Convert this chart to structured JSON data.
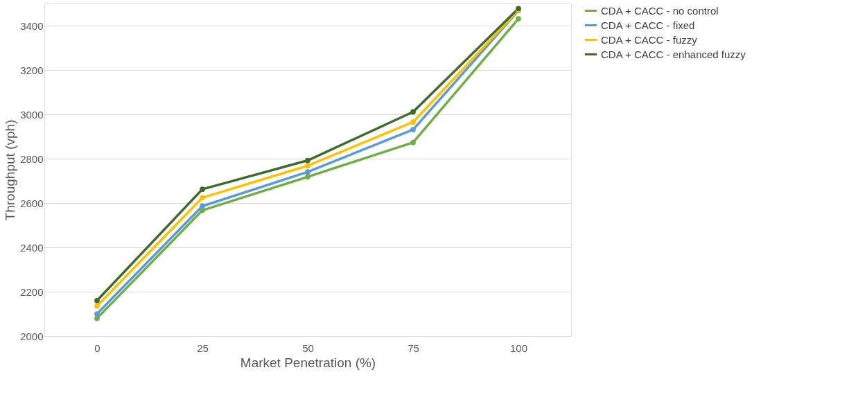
{
  "chart_data": {
    "type": "line",
    "xlabel": "Market Penetration (%)",
    "ylabel": "Throughput (vph)",
    "categories": [
      "0",
      "25",
      "50",
      "75",
      "100"
    ],
    "ylim": [
      2000,
      3500
    ],
    "yticks": [
      2000,
      2200,
      2400,
      2600,
      2800,
      3000,
      3200,
      3400
    ],
    "grid": "y",
    "legend": "right",
    "marker": "circle",
    "line_style": "solid",
    "series": [
      {
        "name": "CDA + CACC -  no  control",
        "color": "#70ad47",
        "values": [
          2080,
          2567,
          2718,
          2873,
          3431
        ]
      },
      {
        "name": "CDA + CACC -  fixed",
        "color": "#5b9bd5",
        "values": [
          2100,
          2586,
          2740,
          2931,
          3468
        ]
      },
      {
        "name": "CDA + CACC -  fuzzy",
        "color": "#ffc000",
        "values": [
          2135,
          2624,
          2768,
          2965,
          3470
        ]
      },
      {
        "name": "CDA + CACC - enhanced fuzzy",
        "color": "#3d6b2a",
        "values": [
          2160,
          2662,
          2792,
          3011,
          3477
        ]
      }
    ]
  }
}
